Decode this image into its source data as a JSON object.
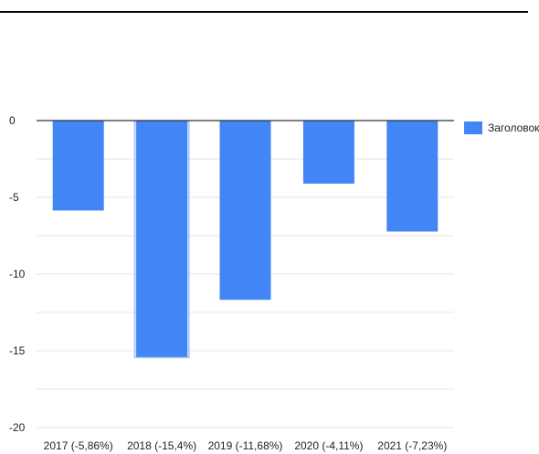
{
  "chart_data": {
    "type": "bar",
    "categories": [
      "2017 (-5,86%)",
      "2018 (-15,4%)",
      "2019 (-11,68%)",
      "2020 (-4,11%)",
      "2021 (-7,23%)"
    ],
    "series": [
      {
        "name": "Заголовок",
        "values": [
          -5.86,
          -15.4,
          -11.68,
          -4.11,
          -7.23
        ]
      }
    ],
    "ylim": [
      -20,
      0
    ],
    "yticks": [
      0,
      -5,
      -10,
      -15,
      -20
    ],
    "grid": true,
    "legend_position": "right",
    "selected_category": "2018 (-15,4%)",
    "colors": {
      "bar": "#4285f4",
      "grid": "#e6e6e6",
      "zero_line": "#333333",
      "selection_border": "#a8c7fa"
    }
  }
}
